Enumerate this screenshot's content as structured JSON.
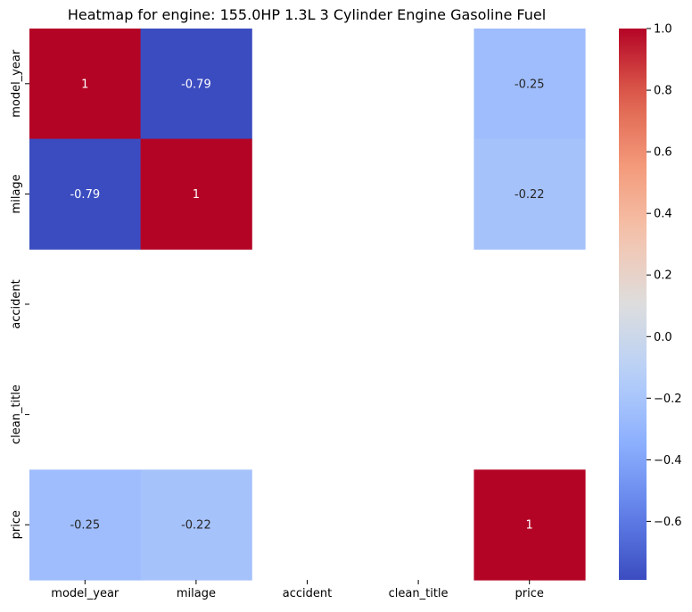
{
  "chart_data": {
    "type": "heatmap",
    "title": "Heatmap for engine: 155.0HP 1.3L 3 Cylinder Engine Gasoline Fuel",
    "x_labels": [
      "model_year",
      "milage",
      "accident",
      "clean_title",
      "price"
    ],
    "y_labels": [
      "model_year",
      "milage",
      "accident",
      "clean_title",
      "price"
    ],
    "values": [
      [
        1,
        -0.79,
        null,
        null,
        -0.25
      ],
      [
        -0.79,
        1,
        null,
        null,
        -0.22
      ],
      [
        null,
        null,
        null,
        null,
        null
      ],
      [
        null,
        null,
        null,
        null,
        null
      ],
      [
        -0.25,
        -0.22,
        null,
        null,
        1
      ]
    ],
    "annotations": [
      [
        "1",
        "-0.79",
        "",
        "",
        "-0.25"
      ],
      [
        "-0.79",
        "1",
        "",
        "",
        "-0.22"
      ],
      [
        "",
        "",
        "",
        "",
        ""
      ],
      [
        "",
        "",
        "",
        "",
        ""
      ],
      [
        "-0.25",
        "-0.22",
        "",
        "",
        "1"
      ]
    ],
    "colormap": "coolwarm",
    "vmin": -0.79,
    "vmax": 1,
    "colorbar_ticks": [
      -0.6,
      -0.4,
      -0.2,
      0.0,
      0.2,
      0.4,
      0.6,
      0.8,
      1.0
    ],
    "colorbar_tick_labels": [
      "−0.6",
      "−0.4",
      "−0.2",
      "0.0",
      "0.2",
      "0.4",
      "0.6",
      "0.8",
      "1.0"
    ],
    "grid": false,
    "legend": "colorbar-right"
  }
}
